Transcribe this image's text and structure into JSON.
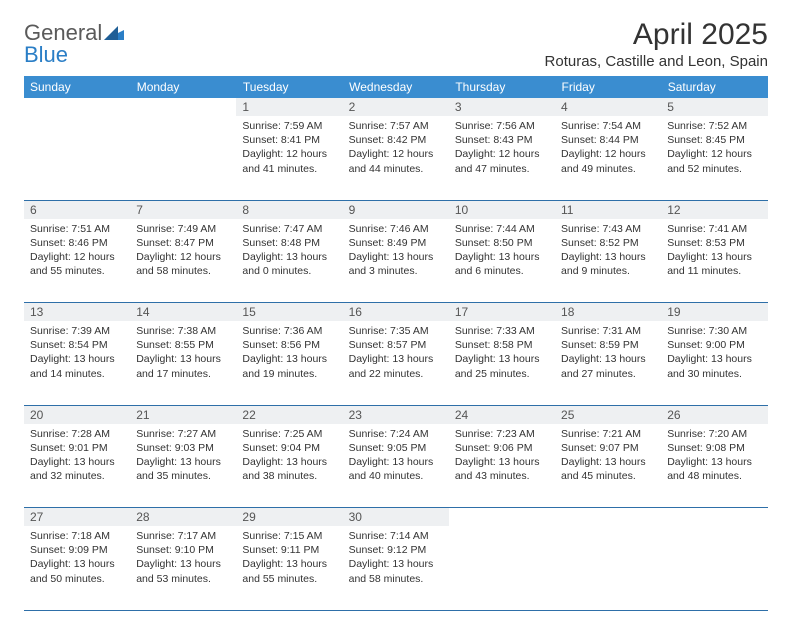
{
  "brand": {
    "part1": "General",
    "part2": "Blue"
  },
  "title": "April 2025",
  "location": "Roturas, Castille and Leon, Spain",
  "colors": {
    "header_bg": "#3a8dd0",
    "header_text": "#ffffff",
    "daynum_bg": "#eef0f2",
    "rule": "#2e6fa8",
    "brand_gray": "#5a5a5a",
    "brand_blue": "#2a7ec6"
  },
  "day_headers": [
    "Sunday",
    "Monday",
    "Tuesday",
    "Wednesday",
    "Thursday",
    "Friday",
    "Saturday"
  ],
  "weeks": [
    [
      null,
      null,
      {
        "n": "1",
        "sr": "7:59 AM",
        "ss": "8:41 PM",
        "dl": "12 hours and 41 minutes."
      },
      {
        "n": "2",
        "sr": "7:57 AM",
        "ss": "8:42 PM",
        "dl": "12 hours and 44 minutes."
      },
      {
        "n": "3",
        "sr": "7:56 AM",
        "ss": "8:43 PM",
        "dl": "12 hours and 47 minutes."
      },
      {
        "n": "4",
        "sr": "7:54 AM",
        "ss": "8:44 PM",
        "dl": "12 hours and 49 minutes."
      },
      {
        "n": "5",
        "sr": "7:52 AM",
        "ss": "8:45 PM",
        "dl": "12 hours and 52 minutes."
      }
    ],
    [
      {
        "n": "6",
        "sr": "7:51 AM",
        "ss": "8:46 PM",
        "dl": "12 hours and 55 minutes."
      },
      {
        "n": "7",
        "sr": "7:49 AM",
        "ss": "8:47 PM",
        "dl": "12 hours and 58 minutes."
      },
      {
        "n": "8",
        "sr": "7:47 AM",
        "ss": "8:48 PM",
        "dl": "13 hours and 0 minutes."
      },
      {
        "n": "9",
        "sr": "7:46 AM",
        "ss": "8:49 PM",
        "dl": "13 hours and 3 minutes."
      },
      {
        "n": "10",
        "sr": "7:44 AM",
        "ss": "8:50 PM",
        "dl": "13 hours and 6 minutes."
      },
      {
        "n": "11",
        "sr": "7:43 AM",
        "ss": "8:52 PM",
        "dl": "13 hours and 9 minutes."
      },
      {
        "n": "12",
        "sr": "7:41 AM",
        "ss": "8:53 PM",
        "dl": "13 hours and 11 minutes."
      }
    ],
    [
      {
        "n": "13",
        "sr": "7:39 AM",
        "ss": "8:54 PM",
        "dl": "13 hours and 14 minutes."
      },
      {
        "n": "14",
        "sr": "7:38 AM",
        "ss": "8:55 PM",
        "dl": "13 hours and 17 minutes."
      },
      {
        "n": "15",
        "sr": "7:36 AM",
        "ss": "8:56 PM",
        "dl": "13 hours and 19 minutes."
      },
      {
        "n": "16",
        "sr": "7:35 AM",
        "ss": "8:57 PM",
        "dl": "13 hours and 22 minutes."
      },
      {
        "n": "17",
        "sr": "7:33 AM",
        "ss": "8:58 PM",
        "dl": "13 hours and 25 minutes."
      },
      {
        "n": "18",
        "sr": "7:31 AM",
        "ss": "8:59 PM",
        "dl": "13 hours and 27 minutes."
      },
      {
        "n": "19",
        "sr": "7:30 AM",
        "ss": "9:00 PM",
        "dl": "13 hours and 30 minutes."
      }
    ],
    [
      {
        "n": "20",
        "sr": "7:28 AM",
        "ss": "9:01 PM",
        "dl": "13 hours and 32 minutes."
      },
      {
        "n": "21",
        "sr": "7:27 AM",
        "ss": "9:03 PM",
        "dl": "13 hours and 35 minutes."
      },
      {
        "n": "22",
        "sr": "7:25 AM",
        "ss": "9:04 PM",
        "dl": "13 hours and 38 minutes."
      },
      {
        "n": "23",
        "sr": "7:24 AM",
        "ss": "9:05 PM",
        "dl": "13 hours and 40 minutes."
      },
      {
        "n": "24",
        "sr": "7:23 AM",
        "ss": "9:06 PM",
        "dl": "13 hours and 43 minutes."
      },
      {
        "n": "25",
        "sr": "7:21 AM",
        "ss": "9:07 PM",
        "dl": "13 hours and 45 minutes."
      },
      {
        "n": "26",
        "sr": "7:20 AM",
        "ss": "9:08 PM",
        "dl": "13 hours and 48 minutes."
      }
    ],
    [
      {
        "n": "27",
        "sr": "7:18 AM",
        "ss": "9:09 PM",
        "dl": "13 hours and 50 minutes."
      },
      {
        "n": "28",
        "sr": "7:17 AM",
        "ss": "9:10 PM",
        "dl": "13 hours and 53 minutes."
      },
      {
        "n": "29",
        "sr": "7:15 AM",
        "ss": "9:11 PM",
        "dl": "13 hours and 55 minutes."
      },
      {
        "n": "30",
        "sr": "7:14 AM",
        "ss": "9:12 PM",
        "dl": "13 hours and 58 minutes."
      },
      null,
      null,
      null
    ]
  ],
  "labels": {
    "sunrise": "Sunrise:",
    "sunset": "Sunset:",
    "daylight": "Daylight:"
  }
}
